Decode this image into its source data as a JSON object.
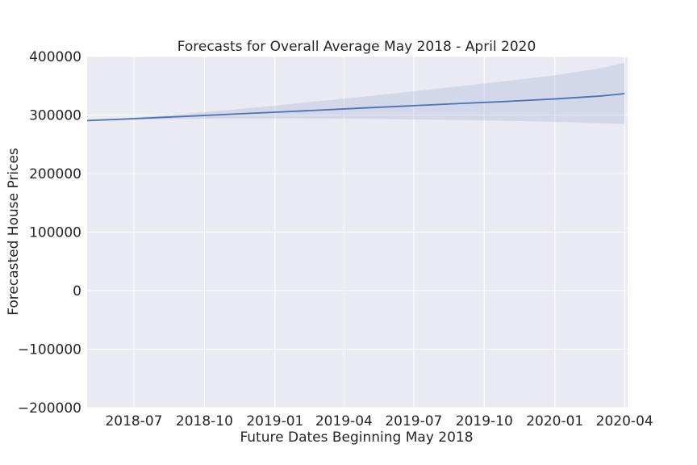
{
  "chart_data": {
    "type": "line",
    "title": "Forecasts for Overall Average May 2018 - April 2020",
    "xlabel": "Future Dates Beginning May 2018",
    "ylabel": "Forecasted House Prices",
    "xlim": [
      "2018-05-01",
      "2020-04-05"
    ],
    "ylim": [
      -200000,
      400000
    ],
    "x_ticks": [
      {
        "value": "2018-07-01",
        "label": "2018-07"
      },
      {
        "value": "2018-10-01",
        "label": "2018-10"
      },
      {
        "value": "2019-01-01",
        "label": "2019-01"
      },
      {
        "value": "2019-04-01",
        "label": "2019-04"
      },
      {
        "value": "2019-07-01",
        "label": "2019-07"
      },
      {
        "value": "2019-10-01",
        "label": "2019-10"
      },
      {
        "value": "2020-01-01",
        "label": "2020-01"
      },
      {
        "value": "2020-04-01",
        "label": "2020-04"
      }
    ],
    "y_ticks": [
      {
        "value": 400000,
        "label": "400000"
      },
      {
        "value": 300000,
        "label": "300000"
      },
      {
        "value": 200000,
        "label": "200000"
      },
      {
        "value": 100000,
        "label": "100000"
      },
      {
        "value": 0,
        "label": "0"
      },
      {
        "value": -100000,
        "label": "−100000"
      },
      {
        "value": -200000,
        "label": "−200000"
      }
    ],
    "grid": true,
    "series": [
      {
        "color": "#4c72b0",
        "band_color": "#a6b7de",
        "x": [
          "2018-05-01",
          "2018-07-01",
          "2018-09-01",
          "2018-11-01",
          "2019-01-01",
          "2019-03-01",
          "2019-05-01",
          "2019-07-01",
          "2019-09-01",
          "2019-11-01",
          "2020-01-01",
          "2020-03-01",
          "2020-04-01"
        ],
        "y": [
          290500,
          293800,
          297500,
          301200,
          304800,
          308500,
          312300,
          316000,
          319800,
          323400,
          327500,
          332500,
          336500
        ],
        "lower": [
          290000,
          292000,
          293500,
          294000,
          294200,
          294000,
          293500,
          292500,
          291500,
          290000,
          288500,
          286000,
          284500
        ],
        "upper": [
          291000,
          295500,
          301500,
          308500,
          316000,
          324000,
          332000,
          340500,
          349500,
          358500,
          368000,
          380000,
          389500
        ]
      }
    ]
  },
  "style": {
    "plot_bg": "#eaeaf2",
    "grid_color": "#ffffff",
    "line_color": "#4c72b0",
    "band_color": "#a6b7de"
  }
}
